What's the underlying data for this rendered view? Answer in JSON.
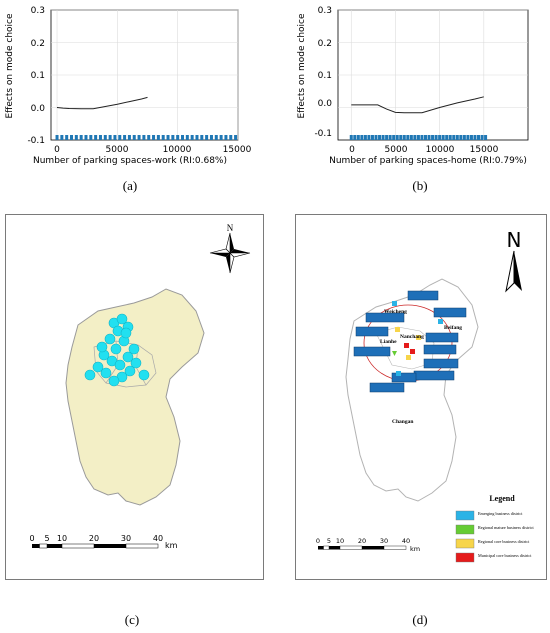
{
  "captions": {
    "a": "(a)",
    "b": "(b)",
    "c": "(c)",
    "d": "(d)"
  },
  "plots": [
    {
      "id": "a",
      "ylabel": "Effects on mode choice",
      "xlabel": "Number of parking spaces-work (RI:0.68%)",
      "yticks": [
        "0.3",
        "0.2",
        "0.1",
        "0.0",
        "-0.1"
      ],
      "xticks": [
        "0",
        "5000",
        "10000",
        "15000"
      ]
    },
    {
      "id": "b",
      "ylabel": "Effects on mode choice",
      "xlabel": "Number of parking spaces-home (RI:0.79%)",
      "yticks": [
        "0.3",
        "0.2",
        "0.1",
        "0.0",
        "-0.1"
      ],
      "xticks": [
        "0",
        "5000",
        "10000",
        "15000"
      ]
    }
  ],
  "chart_data": [
    {
      "type": "line",
      "xlabel": "Number of parking spaces-work (RI:0.68%)",
      "ylabel": "Effects on mode choice",
      "xlim": [
        -500,
        15000
      ],
      "ylim": [
        -0.1,
        0.3
      ],
      "grid": true,
      "x": [
        0,
        500,
        1000,
        2000,
        3000,
        4000,
        5000,
        6000,
        7000,
        7500
      ],
      "y": [
        0.0,
        -0.002,
        -0.003,
        -0.004,
        -0.004,
        0.003,
        0.01,
        0.018,
        0.026,
        0.031
      ],
      "rug_x": [
        0,
        400,
        800,
        1200,
        1600,
        2000,
        2400,
        2800,
        3200,
        3600,
        4000,
        4400,
        4800,
        5200,
        5600,
        6000,
        6400,
        6800,
        7200,
        7600,
        8000,
        8400,
        8800,
        9200,
        9600,
        10000,
        10400,
        10800,
        11200,
        11600,
        12000,
        12400,
        12800,
        13200,
        13600,
        14000,
        14400,
        14800
      ]
    },
    {
      "type": "line",
      "xlabel": "Number of parking spaces-home (RI:0.79%)",
      "ylabel": "Effects on mode choice",
      "xlim": [
        -1500,
        20000
      ],
      "ylim": [
        -0.1,
        0.3
      ],
      "grid": true,
      "x": [
        0,
        1000,
        2000,
        3000,
        4000,
        5000,
        6000,
        7000,
        8000,
        10000,
        12000,
        14000,
        15000
      ],
      "y": [
        0.008,
        0.008,
        0.008,
        0.008,
        -0.005,
        -0.015,
        -0.016,
        -0.016,
        -0.016,
        0.0,
        0.014,
        0.026,
        0.033
      ],
      "rug_x": [
        0,
        400,
        800,
        1200,
        1600,
        2000,
        2400,
        2800,
        3200,
        3600,
        4000,
        4400,
        4800,
        5200,
        5600,
        6000,
        6400,
        6800,
        7200,
        7600,
        8000,
        8400,
        8800,
        9200,
        9600,
        10000,
        10400,
        10800,
        11200,
        11600,
        12000,
        12400,
        12800,
        13200,
        13600,
        14000,
        14400,
        14800,
        15200
      ]
    }
  ],
  "map_c": {
    "north": "N",
    "scale_labels": [
      "0",
      "5",
      "10",
      "20",
      "30",
      "40",
      "km"
    ],
    "colors": {
      "fill": "#f3efc6",
      "points": "#22e0f0"
    }
  },
  "map_d": {
    "north": "N",
    "places": [
      "Weicheng",
      "Beifang",
      "Lianhe",
      "Nanchang",
      "Changan"
    ],
    "scale_labels": [
      "0",
      "5",
      "10",
      "20",
      "30",
      "40",
      "km"
    ],
    "legend_title": "Legend",
    "legend_items": [
      {
        "label": "Emerging business district",
        "color": "#2bb3e6"
      },
      {
        "label": "Regional mature business district",
        "color": "#66cc33"
      },
      {
        "label": "Regional core business district",
        "color": "#f7d54a"
      },
      {
        "label": "Municipal core business district",
        "color": "#e51b1b"
      }
    ]
  }
}
